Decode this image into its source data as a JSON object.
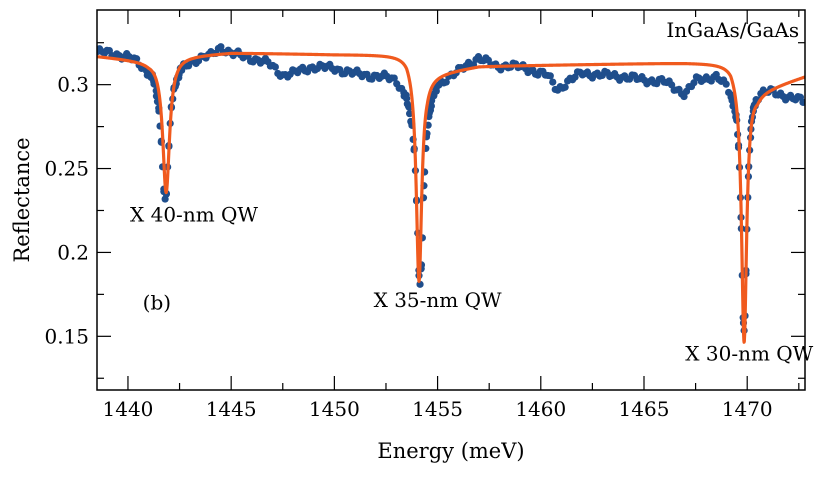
{
  "chart_data": {
    "type": "line",
    "title": "",
    "xlabel": "Energy (meV)",
    "ylabel": "Reflectance",
    "xlim": [
      1438.5,
      1472.8
    ],
    "ylim": [
      0.118,
      0.3445
    ],
    "grid": false,
    "legend": "none",
    "x_ticks": [
      1440,
      1445,
      1450,
      1455,
      1460,
      1465,
      1470
    ],
    "x_tick_labels": [
      "1440",
      "1445",
      "1450",
      "1455",
      "1460",
      "1465",
      "1470"
    ],
    "x_minor_step": 2.5,
    "y_ticks": [
      0.15,
      0.2,
      0.25,
      0.3
    ],
    "y_tick_labels": [
      "0.15",
      "0.2",
      "0.25",
      "0.3"
    ],
    "y_minor_step": 0.025,
    "annotations": [
      {
        "text": "InGaAs/GaAs",
        "x": 1469.3,
        "y": 0.3285
      },
      {
        "text": "X 40-nm QW",
        "x": 1443.2,
        "y": 0.2185
      },
      {
        "text": "X 35-nm QW",
        "x": 1455.0,
        "y": 0.1675
      },
      {
        "text": "X 30-nm QW",
        "x": 1470.1,
        "y": 0.1355
      },
      {
        "text": "(b)",
        "x": 1441.4,
        "y": 0.166
      }
    ],
    "series": [
      {
        "name": "Experiment",
        "style": "markers",
        "color": "#1f4e8c",
        "base": [
          [
            1438.5,
            0.32
          ],
          [
            1440.0,
            0.318
          ],
          [
            1440.8,
            0.313
          ],
          [
            1442.0,
            0.313
          ],
          [
            1443.0,
            0.316
          ],
          [
            1444.0,
            0.318
          ],
          [
            1444.5,
            0.323
          ],
          [
            1445.0,
            0.319
          ],
          [
            1446.0,
            0.316
          ],
          [
            1446.8,
            0.313
          ],
          [
            1447.5,
            0.306
          ],
          [
            1448.0,
            0.307
          ],
          [
            1449.0,
            0.311
          ],
          [
            1450.0,
            0.31
          ],
          [
            1451.0,
            0.307
          ],
          [
            1452.0,
            0.306
          ],
          [
            1453.0,
            0.306
          ],
          [
            1453.6,
            0.3
          ],
          [
            1454.5,
            0.302
          ],
          [
            1455.0,
            0.305
          ],
          [
            1456.0,
            0.309
          ],
          [
            1457.0,
            0.317
          ],
          [
            1457.8,
            0.311
          ],
          [
            1458.5,
            0.312
          ],
          [
            1459.5,
            0.309
          ],
          [
            1460.3,
            0.306
          ],
          [
            1460.8,
            0.297
          ],
          [
            1461.3,
            0.302
          ],
          [
            1462.0,
            0.307
          ],
          [
            1463.0,
            0.306
          ],
          [
            1464.0,
            0.305
          ],
          [
            1465.0,
            0.303
          ],
          [
            1466.0,
            0.302
          ],
          [
            1467.0,
            0.295
          ],
          [
            1467.5,
            0.303
          ],
          [
            1468.5,
            0.307
          ],
          [
            1469.2,
            0.302
          ],
          [
            1470.5,
            0.301
          ],
          [
            1471.5,
            0.296
          ],
          [
            1472.8,
            0.29
          ]
        ],
        "dips": [
          {
            "center": 1441.8,
            "depth": 0.082,
            "width": 0.22
          },
          {
            "center": 1454.15,
            "depth": 0.12,
            "width": 0.2
          },
          {
            "center": 1469.85,
            "depth": 0.15,
            "width": 0.16
          }
        ],
        "step": 0.12
      },
      {
        "name": "Fit",
        "style": "line",
        "color": "#f05a1e",
        "base": [
          [
            1438.5,
            0.317
          ],
          [
            1441.0,
            0.314
          ],
          [
            1442.5,
            0.317
          ],
          [
            1445.0,
            0.319
          ],
          [
            1450.0,
            0.318
          ],
          [
            1453.5,
            0.318
          ],
          [
            1454.5,
            0.306
          ],
          [
            1457.0,
            0.311
          ],
          [
            1462.0,
            0.312
          ],
          [
            1467.0,
            0.313
          ],
          [
            1469.2,
            0.313
          ],
          [
            1470.5,
            0.296
          ],
          [
            1472.8,
            0.305
          ]
        ],
        "dips": [
          {
            "center": 1441.85,
            "depth": 0.08,
            "width": 0.2
          },
          {
            "center": 1454.1,
            "depth": 0.128,
            "width": 0.16
          },
          {
            "center": 1469.85,
            "depth": 0.158,
            "width": 0.15
          }
        ],
        "step": 0.02
      }
    ]
  }
}
